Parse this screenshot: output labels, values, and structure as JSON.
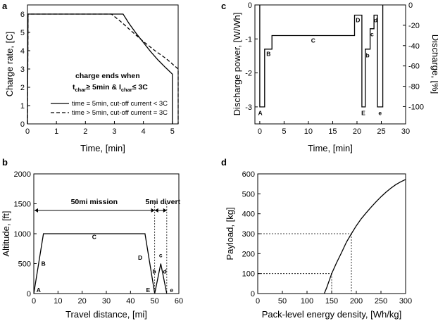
{
  "panels": [
    {
      "id": "a",
      "letter": "a",
      "chart_data": {
        "type": "line",
        "xlabel": "Time, [min]",
        "ylabel": "Charge rate, [C]",
        "xlim": [
          0,
          5.2
        ],
        "ylim": [
          0,
          6.5
        ],
        "xticks": [
          0,
          1,
          2,
          3,
          4,
          5
        ],
        "yticks": [
          0,
          1,
          2,
          3,
          4,
          5,
          6
        ],
        "legend_position": "bottom-right",
        "series": [
          {
            "name": "time = 5min, cut-off current < 3C",
            "style": "solid",
            "points": [
              [
                0,
                0
              ],
              [
                0.02,
                6
              ],
              [
                3.3,
                6
              ],
              [
                3.5,
                5.5
              ],
              [
                3.75,
                4.95
              ],
              [
                4.0,
                4.45
              ],
              [
                4.25,
                3.95
              ],
              [
                4.5,
                3.5
              ],
              [
                4.75,
                3.1
              ],
              [
                5.0,
                2.72
              ],
              [
                5.0,
                0
              ]
            ]
          },
          {
            "name": "time > 5min, cut-off current = 3C",
            "style": "dashed",
            "points": [
              [
                0,
                0
              ],
              [
                0.02,
                6
              ],
              [
                2.9,
                6
              ],
              [
                3.25,
                5.55
              ],
              [
                3.6,
                5.05
              ],
              [
                4.0,
                4.5
              ],
              [
                4.4,
                4.0
              ],
              [
                4.8,
                3.55
              ],
              [
                5.2,
                3.0
              ],
              [
                5.2,
                0
              ]
            ]
          }
        ],
        "annotation": {
          "line1": "charge ends when",
          "t": "t",
          "t_sub": "char",
          "geq": "≥ 5min & I",
          "i_sub": "char",
          "leq": "≤ 3C"
        }
      }
    },
    {
      "id": "c",
      "letter": "c",
      "chart_data": {
        "type": "line",
        "xlabel": "Time, [min]",
        "ylabel": "Discharge power, [W/Wh]",
        "ylabel_right": "Discharge, [%]",
        "xlim": [
          -1,
          30
        ],
        "ylim": [
          -3.5,
          0
        ],
        "ylim_right": [
          -117,
          0
        ],
        "xticks": [
          0,
          5,
          10,
          15,
          20,
          25,
          30
        ],
        "yticks": [
          0,
          -1,
          -2,
          -3
        ],
        "yticks_right": [
          0,
          -20,
          -40,
          -60,
          -80,
          -100
        ],
        "series": [
          {
            "name": "",
            "style": "solid",
            "points": [
              [
                0,
                0
              ],
              [
                0,
                -3
              ],
              [
                1,
                -3
              ],
              [
                1,
                -1.3
              ],
              [
                2.5,
                -1.3
              ],
              [
                2.5,
                -0.9
              ],
              [
                19.5,
                -0.9
              ],
              [
                19.5,
                -0.3
              ],
              [
                21,
                -0.3
              ],
              [
                21,
                -3
              ],
              [
                21.7,
                -3
              ],
              [
                21.7,
                -1.3
              ],
              [
                22.7,
                -1.3
              ],
              [
                22.7,
                -0.7
              ],
              [
                23.5,
                -0.7
              ],
              [
                23.5,
                -0.3
              ],
              [
                24.2,
                -0.3
              ],
              [
                24.2,
                -3
              ],
              [
                25.3,
                -3
              ],
              [
                25.3,
                0
              ]
            ]
          }
        ],
        "segment_labels": [
          "A",
          "B",
          "C",
          "D",
          "E",
          "b",
          "c",
          "d",
          "e"
        ]
      }
    },
    {
      "id": "b",
      "letter": "b",
      "chart_data": {
        "type": "line",
        "xlabel": "Travel distance, [mi]",
        "ylabel": "Altitude, [ft]",
        "xlim": [
          0,
          60
        ],
        "ylim": [
          0,
          2000
        ],
        "xticks": [
          0,
          10,
          20,
          30,
          40,
          50,
          60
        ],
        "yticks": [
          0,
          500,
          1000,
          1500,
          2000
        ],
        "series": [
          {
            "name": "",
            "style": "solid",
            "points": [
              [
                0,
                0
              ],
              [
                4,
                1000
              ],
              [
                46,
                1000
              ],
              [
                50,
                0
              ],
              [
                52.5,
                500
              ],
              [
                55,
                0
              ]
            ]
          }
        ],
        "segment_labels": [
          "A",
          "B",
          "C",
          "D",
          "E",
          "b",
          "c",
          "d",
          "e"
        ],
        "mission_label": "50mi mission",
        "divert_label": "5mi divert",
        "mission_span": [
          0,
          50
        ],
        "divert_span": [
          50,
          55
        ]
      }
    },
    {
      "id": "d",
      "letter": "d",
      "chart_data": {
        "type": "line",
        "xlabel": "Pack-level energy density, [Wh/kg]",
        "ylabel": "Payload, [kg]",
        "xlim": [
          0,
          300
        ],
        "ylim": [
          0,
          600
        ],
        "xticks": [
          0,
          50,
          100,
          150,
          200,
          250,
          300
        ],
        "yticks": [
          0,
          100,
          200,
          300,
          400,
          500,
          600
        ],
        "series": [
          {
            "name": "",
            "style": "solid",
            "points": [
              [
                135,
                0
              ],
              [
                140,
                30
              ],
              [
                150,
                100
              ],
              [
                160,
                155
              ],
              [
                170,
                205
              ],
              [
                180,
                258
              ],
              [
                190,
                300
              ],
              [
                200,
                340
              ],
              [
                210,
                375
              ],
              [
                220,
                405
              ],
              [
                230,
                433
              ],
              [
                240,
                460
              ],
              [
                250,
                485
              ],
              [
                260,
                508
              ],
              [
                270,
                528
              ],
              [
                280,
                546
              ],
              [
                290,
                560
              ],
              [
                300,
                572
              ]
            ]
          }
        ],
        "reference_lines": [
          [
            150,
            100
          ],
          [
            190,
            300
          ]
        ]
      }
    }
  ]
}
